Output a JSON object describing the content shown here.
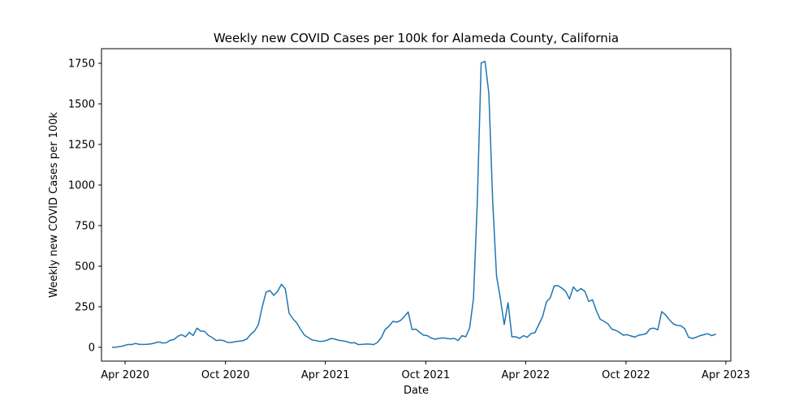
{
  "chart_data": {
    "type": "line",
    "title": "Weekly new COVID Cases per 100k for Alameda County, California",
    "xlabel": "Date",
    "ylabel": "Weekly new COVID Cases per 100k",
    "xlim": [
      "2020-02-18",
      "2023-04-10"
    ],
    "ylim": [
      -85,
      1840
    ],
    "grid": false,
    "x_ticks": [
      {
        "date": "2020-04-01",
        "label": "Apr 2020"
      },
      {
        "date": "2020-10-01",
        "label": "Oct 2020"
      },
      {
        "date": "2021-04-01",
        "label": "Apr 2021"
      },
      {
        "date": "2021-10-01",
        "label": "Oct 2021"
      },
      {
        "date": "2022-04-01",
        "label": "Apr 2022"
      },
      {
        "date": "2022-10-01",
        "label": "Oct 2022"
      },
      {
        "date": "2023-04-01",
        "label": "Apr 2023"
      }
    ],
    "y_ticks": [
      {
        "value": 0,
        "label": "0"
      },
      {
        "value": 250,
        "label": "250"
      },
      {
        "value": 500,
        "label": "500"
      },
      {
        "value": 750,
        "label": "750"
      },
      {
        "value": 1000,
        "label": "1000"
      },
      {
        "value": 1250,
        "label": "1250"
      },
      {
        "value": 1500,
        "label": "1500"
      },
      {
        "value": 1750,
        "label": "1750"
      }
    ],
    "series": [
      {
        "color": "#1f77b4",
        "points": [
          [
            "2020-03-09",
            0
          ],
          [
            "2020-03-16",
            1
          ],
          [
            "2020-03-23",
            5
          ],
          [
            "2020-03-30",
            10
          ],
          [
            "2020-04-06",
            18
          ],
          [
            "2020-04-13",
            17
          ],
          [
            "2020-04-20",
            24
          ],
          [
            "2020-04-27",
            18
          ],
          [
            "2020-05-04",
            18
          ],
          [
            "2020-05-11",
            19
          ],
          [
            "2020-05-18",
            21
          ],
          [
            "2020-05-25",
            27
          ],
          [
            "2020-06-01",
            33
          ],
          [
            "2020-06-08",
            27
          ],
          [
            "2020-06-15",
            28
          ],
          [
            "2020-06-22",
            43
          ],
          [
            "2020-06-29",
            48
          ],
          [
            "2020-07-06",
            68
          ],
          [
            "2020-07-13",
            78
          ],
          [
            "2020-07-20",
            65
          ],
          [
            "2020-07-27",
            92
          ],
          [
            "2020-08-03",
            73
          ],
          [
            "2020-08-10",
            118
          ],
          [
            "2020-08-17",
            100
          ],
          [
            "2020-08-24",
            98
          ],
          [
            "2020-08-31",
            73
          ],
          [
            "2020-09-07",
            60
          ],
          [
            "2020-09-14",
            42
          ],
          [
            "2020-09-21",
            45
          ],
          [
            "2020-09-28",
            41
          ],
          [
            "2020-10-05",
            30
          ],
          [
            "2020-10-12",
            30
          ],
          [
            "2020-10-19",
            35
          ],
          [
            "2020-10-26",
            38
          ],
          [
            "2020-11-02",
            41
          ],
          [
            "2020-11-09",
            52
          ],
          [
            "2020-11-16",
            80
          ],
          [
            "2020-11-23",
            100
          ],
          [
            "2020-11-30",
            140
          ],
          [
            "2020-12-07",
            250
          ],
          [
            "2020-12-14",
            340
          ],
          [
            "2020-12-21",
            350
          ],
          [
            "2020-12-28",
            320
          ],
          [
            "2021-01-04",
            345
          ],
          [
            "2021-01-11",
            388
          ],
          [
            "2021-01-18",
            360
          ],
          [
            "2021-01-25",
            210
          ],
          [
            "2021-02-01",
            175
          ],
          [
            "2021-02-08",
            150
          ],
          [
            "2021-02-15",
            110
          ],
          [
            "2021-02-22",
            75
          ],
          [
            "2021-03-01",
            60
          ],
          [
            "2021-03-08",
            45
          ],
          [
            "2021-03-15",
            42
          ],
          [
            "2021-03-22",
            36
          ],
          [
            "2021-03-29",
            38
          ],
          [
            "2021-04-05",
            45
          ],
          [
            "2021-04-12",
            55
          ],
          [
            "2021-04-19",
            50
          ],
          [
            "2021-04-26",
            43
          ],
          [
            "2021-05-03",
            40
          ],
          [
            "2021-05-10",
            35
          ],
          [
            "2021-05-17",
            27
          ],
          [
            "2021-05-24",
            29
          ],
          [
            "2021-05-31",
            17
          ],
          [
            "2021-06-07",
            18
          ],
          [
            "2021-06-14",
            20
          ],
          [
            "2021-06-21",
            20
          ],
          [
            "2021-06-28",
            17
          ],
          [
            "2021-07-05",
            30
          ],
          [
            "2021-07-12",
            60
          ],
          [
            "2021-07-19",
            110
          ],
          [
            "2021-07-26",
            130
          ],
          [
            "2021-08-02",
            160
          ],
          [
            "2021-08-09",
            155
          ],
          [
            "2021-08-16",
            165
          ],
          [
            "2021-08-23",
            190
          ],
          [
            "2021-08-30",
            218
          ],
          [
            "2021-09-06",
            110
          ],
          [
            "2021-09-13",
            112
          ],
          [
            "2021-09-20",
            92
          ],
          [
            "2021-09-27",
            75
          ],
          [
            "2021-10-04",
            72
          ],
          [
            "2021-10-11",
            57
          ],
          [
            "2021-10-18",
            50
          ],
          [
            "2021-10-25",
            55
          ],
          [
            "2021-11-01",
            58
          ],
          [
            "2021-11-08",
            55
          ],
          [
            "2021-11-15",
            52
          ],
          [
            "2021-11-22",
            55
          ],
          [
            "2021-11-29",
            42
          ],
          [
            "2021-12-06",
            72
          ],
          [
            "2021-12-13",
            65
          ],
          [
            "2021-12-20",
            120
          ],
          [
            "2021-12-27",
            300
          ],
          [
            "2022-01-03",
            900
          ],
          [
            "2022-01-10",
            1752
          ],
          [
            "2022-01-17",
            1762
          ],
          [
            "2022-01-24",
            1565
          ],
          [
            "2022-01-31",
            900
          ],
          [
            "2022-02-07",
            440
          ],
          [
            "2022-02-14",
            300
          ],
          [
            "2022-02-21",
            140
          ],
          [
            "2022-02-28",
            275
          ],
          [
            "2022-03-07",
            65
          ],
          [
            "2022-03-14",
            65
          ],
          [
            "2022-03-21",
            55
          ],
          [
            "2022-03-28",
            72
          ],
          [
            "2022-04-04",
            62
          ],
          [
            "2022-04-11",
            85
          ],
          [
            "2022-04-18",
            90
          ],
          [
            "2022-04-25",
            140
          ],
          [
            "2022-05-02",
            190
          ],
          [
            "2022-05-09",
            280
          ],
          [
            "2022-05-16",
            305
          ],
          [
            "2022-05-23",
            378
          ],
          [
            "2022-05-30",
            380
          ],
          [
            "2022-06-06",
            365
          ],
          [
            "2022-06-13",
            345
          ],
          [
            "2022-06-20",
            298
          ],
          [
            "2022-06-27",
            372
          ],
          [
            "2022-07-04",
            345
          ],
          [
            "2022-07-11",
            362
          ],
          [
            "2022-07-18",
            345
          ],
          [
            "2022-07-25",
            283
          ],
          [
            "2022-08-01",
            292
          ],
          [
            "2022-08-08",
            225
          ],
          [
            "2022-08-15",
            173
          ],
          [
            "2022-08-22",
            160
          ],
          [
            "2022-08-29",
            145
          ],
          [
            "2022-09-05",
            112
          ],
          [
            "2022-09-12",
            105
          ],
          [
            "2022-09-19",
            92
          ],
          [
            "2022-09-26",
            75
          ],
          [
            "2022-10-03",
            78
          ],
          [
            "2022-10-10",
            70
          ],
          [
            "2022-10-17",
            63
          ],
          [
            "2022-10-24",
            75
          ],
          [
            "2022-10-31",
            78
          ],
          [
            "2022-11-07",
            85
          ],
          [
            "2022-11-14",
            115
          ],
          [
            "2022-11-21",
            118
          ],
          [
            "2022-11-28",
            108
          ],
          [
            "2022-12-05",
            220
          ],
          [
            "2022-12-12",
            200
          ],
          [
            "2022-12-19",
            170
          ],
          [
            "2022-12-26",
            145
          ],
          [
            "2023-01-02",
            135
          ],
          [
            "2023-01-09",
            133
          ],
          [
            "2023-01-16",
            115
          ],
          [
            "2023-01-23",
            62
          ],
          [
            "2023-01-30",
            55
          ],
          [
            "2023-02-06",
            62
          ],
          [
            "2023-02-13",
            72
          ],
          [
            "2023-02-20",
            78
          ],
          [
            "2023-02-27",
            84
          ],
          [
            "2023-03-06",
            72
          ],
          [
            "2023-03-13",
            80
          ]
        ]
      }
    ]
  }
}
